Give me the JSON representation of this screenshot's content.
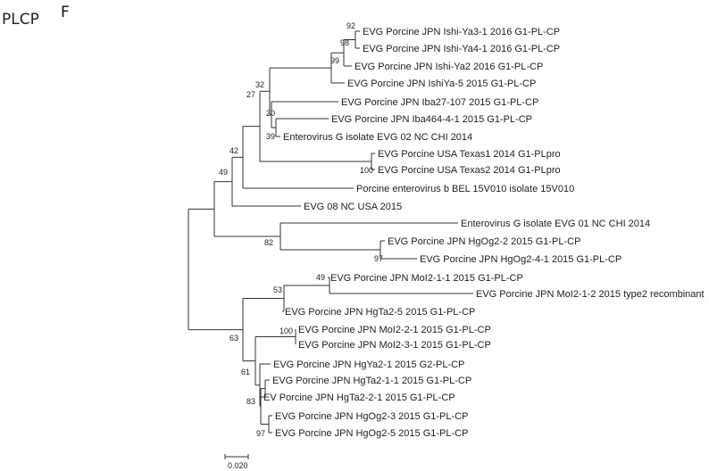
{
  "panel": {
    "label": "PLCP",
    "letter": "F"
  },
  "colors": {
    "default": "#222222",
    "blue": "#3b8fd9",
    "red": "#e0201b"
  },
  "leaves": [
    {
      "id": "L1",
      "label": "EVG Porcine JPN Ishi-Ya3-1 2016 G1-PL-CP",
      "color": "default"
    },
    {
      "id": "L2",
      "label": "EVG Porcine JPN Ishi-Ya4-1 2016 G1-PL-CP",
      "color": "default"
    },
    {
      "id": "L3",
      "label": "EVG Porcine JPN Ishi-Ya2 2016 G1-PL-CP",
      "color": "default"
    },
    {
      "id": "L4",
      "label": "EVG Porcine JPN IshiYa-5 2015 G1-PL-CP",
      "color": "default"
    },
    {
      "id": "L5",
      "label": "EVG Porcine JPN Iba27-107 2015 G1-PL-CP",
      "color": "default"
    },
    {
      "id": "L6",
      "label": "EVG Porcine JPN Iba464-4-1 2015 G1-PL-CP",
      "color": "default"
    },
    {
      "id": "L7",
      "label": "Enterovirus G isolate EVG 02 NC CHI 2014",
      "color": "default"
    },
    {
      "id": "L8",
      "label": "EVG Porcine USA Texas1 2014 G1-PLpro",
      "color": "default"
    },
    {
      "id": "L9",
      "label": "EVG Porcine USA Texas2 2014 G1-PLpro",
      "color": "default"
    },
    {
      "id": "L10",
      "label": "Porcine enterovirus b BEL 15V010 isolate 15V010",
      "color": "default"
    },
    {
      "id": "L11",
      "label": "EVG 08 NC USA 2015",
      "color": "default"
    },
    {
      "id": "L12",
      "label": "Enterovirus G isolate EVG 01 NC CHI 2014",
      "color": "default"
    },
    {
      "id": "L13",
      "label": "EVG Porcine JPN HgOg2-2 2015 G1-PL-CP",
      "color": "default"
    },
    {
      "id": "L14",
      "label": "EVG Porcine JPN HgOg2-4-1 2015 G1-PL-CP",
      "color": "default"
    },
    {
      "id": "L15",
      "label": "EVG Porcine JPN MoI2-1-1 2015 G1-PL-CP",
      "color": "blue"
    },
    {
      "id": "L16",
      "label": "EVG Porcine JPN MoI2-1-2 2015 type2 recombinant",
      "color": "red"
    },
    {
      "id": "L17",
      "label": "EVG Porcine JPN HgTa2-5 2015 G1-PL-CP",
      "color": "default"
    },
    {
      "id": "L18",
      "label": "EVG Porcine JPN MoI2-2-1 2015 G1-PL-CP",
      "color": "default"
    },
    {
      "id": "L19",
      "label": "EVG Porcine JPN MoI2-3-1 2015 G1-PL-CP",
      "color": "default"
    },
    {
      "id": "L20",
      "label": "EVG Porcine JPN HgYa2-1 2015 G2-PL-CP",
      "color": "default"
    },
    {
      "id": "L21",
      "label": "EVG Porcine JPN HgTa2-1-1 2015 G1-PL-CP",
      "color": "default"
    },
    {
      "id": "L22",
      "label": "EV Porcine JPN HgTa2-2-1 2015 G1-PL-CP",
      "color": "default"
    },
    {
      "id": "L23",
      "label": "EVG Porcine JPN HgOg2-3 2015 G1-PL-CP",
      "color": "default"
    },
    {
      "id": "L24",
      "label": "EVG Porcine JPN HgOg2-5 2015 G1-PL-CP",
      "color": "default"
    }
  ],
  "bootstrap": [
    {
      "id": "B92",
      "value": "92"
    },
    {
      "id": "B98",
      "value": "98"
    },
    {
      "id": "B99",
      "value": "99"
    },
    {
      "id": "B32",
      "value": "32"
    },
    {
      "id": "B20",
      "value": "20"
    },
    {
      "id": "B39",
      "value": "39"
    },
    {
      "id": "B27",
      "value": "27"
    },
    {
      "id": "B100a",
      "value": "100"
    },
    {
      "id": "B42",
      "value": "42"
    },
    {
      "id": "B49a",
      "value": "49"
    },
    {
      "id": "B82",
      "value": "82"
    },
    {
      "id": "B97a",
      "value": "97"
    },
    {
      "id": "B49b",
      "value": "49"
    },
    {
      "id": "B53",
      "value": "53"
    },
    {
      "id": "B100b",
      "value": "100"
    },
    {
      "id": "B63",
      "value": "63"
    },
    {
      "id": "B61",
      "value": "61"
    },
    {
      "id": "B83",
      "value": "83"
    },
    {
      "id": "B97b",
      "value": "97"
    }
  ],
  "scale_bar": {
    "label": "0.020"
  }
}
